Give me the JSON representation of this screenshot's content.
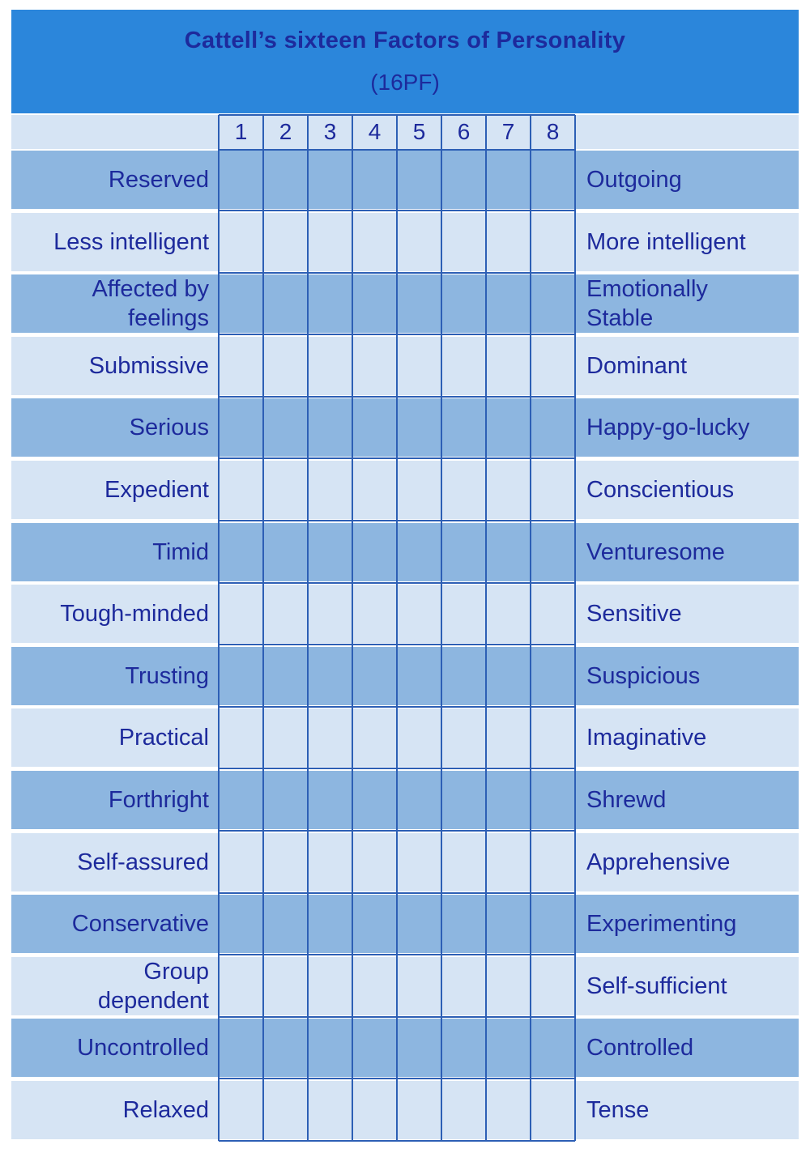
{
  "title": "Cattell’s sixteen Factors of Personality",
  "subtitle": "(16PF)",
  "scale": [
    "1",
    "2",
    "3",
    "4",
    "5",
    "6",
    "7",
    "8"
  ],
  "factors": [
    {
      "left": [
        "Reserved"
      ],
      "right": [
        "Outgoing"
      ]
    },
    {
      "left": [
        "Less intelligent"
      ],
      "right": [
        "More intelligent"
      ]
    },
    {
      "left": [
        "Affected by",
        "feelings"
      ],
      "right": [
        "Emotionally",
        "Stable"
      ]
    },
    {
      "left": [
        "Submissive"
      ],
      "right": [
        "Dominant"
      ]
    },
    {
      "left": [
        "Serious"
      ],
      "right": [
        "Happy-go-lucky"
      ]
    },
    {
      "left": [
        "Expedient"
      ],
      "right": [
        "Conscientious"
      ]
    },
    {
      "left": [
        "Timid"
      ],
      "right": [
        "Venturesome"
      ]
    },
    {
      "left": [
        "Tough-minded"
      ],
      "right": [
        "Sensitive"
      ]
    },
    {
      "left": [
        "Trusting"
      ],
      "right": [
        "Suspicious"
      ]
    },
    {
      "left": [
        "Practical"
      ],
      "right": [
        "Imaginative"
      ]
    },
    {
      "left": [
        "Forthright"
      ],
      "right": [
        "Shrewd"
      ]
    },
    {
      "left": [
        "Self-assured"
      ],
      "right": [
        "Apprehensive"
      ]
    },
    {
      "left": [
        "Conservative"
      ],
      "right": [
        "Experimenting"
      ]
    },
    {
      "left": [
        "Group",
        "dependent"
      ],
      "right": [
        "Self-sufficient"
      ]
    },
    {
      "left": [
        "Uncontrolled"
      ],
      "right": [
        "Controlled"
      ]
    },
    {
      "left": [
        "Relaxed"
      ],
      "right": [
        "Tense"
      ]
    }
  ],
  "colors": {
    "header": "#2b86db",
    "title_text": "#1d2a9c",
    "row_dark": "#8db6e0",
    "row_light": "#d6e4f4",
    "grid": "#2d5fb5"
  }
}
